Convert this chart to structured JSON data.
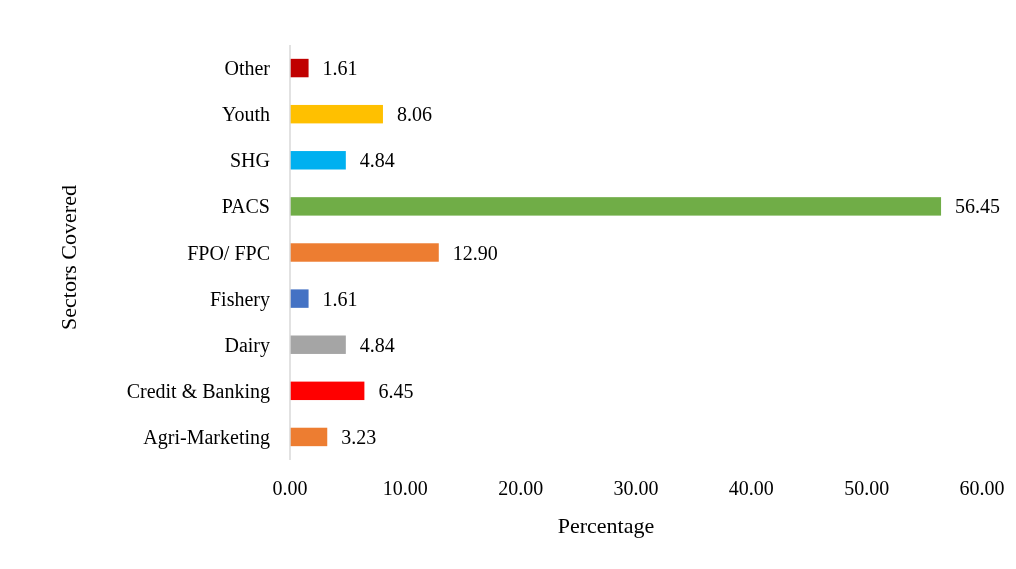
{
  "chart_data": {
    "type": "bar",
    "orientation": "horizontal",
    "ylabel": "Sectors Covered",
    "xlabel": "Percentage",
    "categories": [
      "Other",
      "Youth",
      "SHG",
      "PACS",
      "FPO/ FPC",
      "Fishery",
      "Dairy",
      "Credit & Banking",
      "Agri-Marketing"
    ],
    "values": [
      1.61,
      8.06,
      4.84,
      56.45,
      12.9,
      1.61,
      4.84,
      6.45,
      3.23
    ],
    "value_labels": [
      "1.61",
      "8.06",
      "4.84",
      "56.45",
      "12.90",
      "1.61",
      "4.84",
      "6.45",
      "3.23"
    ],
    "colors": [
      "#c00000",
      "#ffc000",
      "#00b0f0",
      "#70ad47",
      "#ed7d31",
      "#4472c4",
      "#a5a5a5",
      "#ff0000",
      "#ed7d31"
    ],
    "xlim": [
      0,
      60
    ],
    "xticks": [
      {
        "value": 0,
        "label": "0.00"
      },
      {
        "value": 10,
        "label": "10.00"
      },
      {
        "value": 20,
        "label": "20.00"
      },
      {
        "value": 30,
        "label": "30.00"
      },
      {
        "value": 40,
        "label": "40.00"
      },
      {
        "value": 50,
        "label": "50.00"
      },
      {
        "value": 60,
        "label": "60.00"
      }
    ],
    "grid": false
  }
}
